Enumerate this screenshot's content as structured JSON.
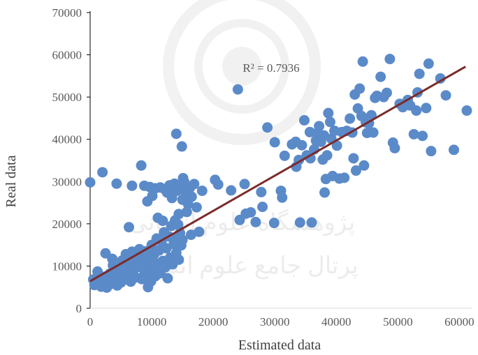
{
  "chart_data": {
    "type": "scatter",
    "title": "",
    "xlabel": "Estimated data",
    "ylabel": "Real data",
    "xlim": [
      0,
      62000
    ],
    "ylim": [
      0,
      70000
    ],
    "x_ticks": [
      0,
      10000,
      20000,
      30000,
      40000,
      50000,
      60000
    ],
    "y_ticks": [
      0,
      10000,
      20000,
      30000,
      40000,
      50000,
      60000,
      70000
    ],
    "x_tick_labels": [
      "0",
      "10000",
      "20000",
      "30000",
      "40000",
      "50000",
      "60000"
    ],
    "y_tick_labels": [
      "0",
      "10000",
      "20000",
      "30000",
      "40000",
      "50000",
      "60000",
      "70000"
    ],
    "grid": false,
    "legend": "none",
    "annotation": "R² = 0.7936",
    "colors": {
      "points": "#5b8ac9",
      "trendline": "#7b2b2b",
      "axis": "#000000"
    },
    "trendline": {
      "x": [
        0,
        61000
      ],
      "y": [
        6400,
        57200
      ]
    },
    "series": [
      {
        "values": [
          [
            0,
            29800
          ],
          [
            2000,
            32200
          ],
          [
            4300,
            29500
          ],
          [
            6800,
            29000
          ],
          [
            8300,
            33800
          ],
          [
            6300,
            19200
          ],
          [
            500,
            6800
          ],
          [
            700,
            5500
          ],
          [
            1000,
            6200
          ],
          [
            1300,
            6900
          ],
          [
            1500,
            5600
          ],
          [
            1800,
            5100
          ],
          [
            2100,
            6300
          ],
          [
            2400,
            7500
          ],
          [
            2700,
            4900
          ],
          [
            3000,
            6000
          ],
          [
            3200,
            8200
          ],
          [
            3500,
            5800
          ],
          [
            3700,
            10200
          ],
          [
            4000,
            6700
          ],
          [
            4200,
            7300
          ],
          [
            4400,
            5400
          ],
          [
            4600,
            9100
          ],
          [
            4800,
            7900
          ],
          [
            5000,
            6100
          ],
          [
            5200,
            11300
          ],
          [
            5400,
            8600
          ],
          [
            5600,
            6800
          ],
          [
            5800,
            12800
          ],
          [
            6000,
            7700
          ],
          [
            6200,
            9600
          ],
          [
            6400,
            10500
          ],
          [
            6600,
            6300
          ],
          [
            6800,
            13400
          ],
          [
            7000,
            8900
          ],
          [
            7200,
            11800
          ],
          [
            7400,
            7300
          ],
          [
            7600,
            12500
          ],
          [
            7800,
            9800
          ],
          [
            8000,
            14000
          ],
          [
            8200,
            10900
          ],
          [
            8400,
            6900
          ],
          [
            8600,
            12200
          ],
          [
            8800,
            8000
          ],
          [
            9000,
            13500
          ],
          [
            9200,
            10100
          ],
          [
            9400,
            5000
          ],
          [
            9600,
            11600
          ],
          [
            9800,
            8700
          ],
          [
            10000,
            15000
          ],
          [
            10200,
            9300
          ],
          [
            10400,
            12800
          ],
          [
            10600,
            7600
          ],
          [
            10800,
            16500
          ],
          [
            11000,
            10600
          ],
          [
            11200,
            13700
          ],
          [
            11400,
            8300
          ],
          [
            11600,
            15800
          ],
          [
            11800,
            11200
          ],
          [
            12000,
            18000
          ],
          [
            12200,
            9700
          ],
          [
            12400,
            14200
          ],
          [
            12600,
            7100
          ],
          [
            12800,
            17000
          ],
          [
            13000,
            12000
          ],
          [
            13200,
            19500
          ],
          [
            13400,
            10400
          ],
          [
            13600,
            15200
          ],
          [
            13800,
            20800
          ],
          [
            14000,
            13100
          ],
          [
            14200,
            16700
          ],
          [
            14400,
            11500
          ],
          [
            14600,
            17800
          ],
          [
            14800,
            14900
          ],
          [
            15000,
            16200
          ],
          [
            2500,
            13000
          ],
          [
            3600,
            11700
          ],
          [
            1200,
            8700
          ],
          [
            5700,
            9600
          ],
          [
            9900,
            6400
          ],
          [
            11300,
            9000
          ],
          [
            12900,
            10800
          ],
          [
            8800,
            29000
          ],
          [
            9300,
            25300
          ],
          [
            9700,
            28700
          ],
          [
            10100,
            26600
          ],
          [
            10600,
            28400
          ],
          [
            11000,
            21400
          ],
          [
            11400,
            28600
          ],
          [
            11800,
            20700
          ],
          [
            12500,
            27400
          ],
          [
            12900,
            29100
          ],
          [
            13300,
            26100
          ],
          [
            13700,
            29500
          ],
          [
            14100,
            27800
          ],
          [
            14400,
            22300
          ],
          [
            14700,
            28400
          ],
          [
            15000,
            25700
          ],
          [
            15300,
            29900
          ],
          [
            15600,
            27200
          ],
          [
            15900,
            24700
          ],
          [
            16200,
            28500
          ],
          [
            16500,
            26400
          ],
          [
            16900,
            29400
          ],
          [
            17300,
            23900
          ],
          [
            17700,
            18100
          ],
          [
            18200,
            27800
          ],
          [
            14000,
            41300
          ],
          [
            14900,
            38300
          ],
          [
            12100,
            28200
          ],
          [
            13500,
            28000
          ],
          [
            15100,
            30800
          ],
          [
            15700,
            22800
          ],
          [
            14300,
            19800
          ],
          [
            16400,
            17400
          ],
          [
            20300,
            30400
          ],
          [
            20800,
            29300
          ],
          [
            22900,
            27900
          ],
          [
            24300,
            20900
          ],
          [
            24000,
            51800
          ],
          [
            25100,
            29400
          ],
          [
            25300,
            22400
          ],
          [
            26100,
            22700
          ],
          [
            26900,
            20400
          ],
          [
            27800,
            27500
          ],
          [
            28000,
            24000
          ],
          [
            28800,
            42800
          ],
          [
            29900,
            20200
          ],
          [
            31200,
            26200
          ],
          [
            31600,
            36100
          ],
          [
            32800,
            38800
          ],
          [
            33400,
            39400
          ],
          [
            33900,
            35100
          ],
          [
            34100,
            20300
          ],
          [
            34400,
            38600
          ],
          [
            34800,
            44500
          ],
          [
            35200,
            36200
          ],
          [
            35700,
            41700
          ],
          [
            36000,
            20300
          ],
          [
            36400,
            37600
          ],
          [
            36700,
            39700
          ],
          [
            37000,
            41600
          ],
          [
            37200,
            43100
          ],
          [
            37500,
            39400
          ],
          [
            37800,
            35200
          ],
          [
            38000,
            40900
          ],
          [
            38100,
            27400
          ],
          [
            38300,
            30600
          ],
          [
            38500,
            36200
          ],
          [
            38700,
            46200
          ],
          [
            39000,
            44100
          ],
          [
            39200,
            40100
          ],
          [
            39400,
            31300
          ],
          [
            39700,
            42000
          ],
          [
            40100,
            38500
          ],
          [
            40500,
            30700
          ],
          [
            40900,
            41700
          ],
          [
            41300,
            30900
          ],
          [
            41700,
            42000
          ],
          [
            42200,
            44900
          ],
          [
            42600,
            41600
          ],
          [
            42800,
            35500
          ],
          [
            43000,
            50600
          ],
          [
            43200,
            32600
          ],
          [
            43500,
            47300
          ],
          [
            43800,
            52000
          ],
          [
            44100,
            45500
          ],
          [
            44300,
            58400
          ],
          [
            44500,
            33800
          ],
          [
            44800,
            44000
          ],
          [
            45000,
            41500
          ],
          [
            45300,
            43800
          ],
          [
            45700,
            45700
          ],
          [
            46000,
            41600
          ],
          [
            46300,
            49800
          ],
          [
            46600,
            50300
          ],
          [
            47200,
            54800
          ],
          [
            47700,
            50000
          ],
          [
            48200,
            51000
          ],
          [
            48700,
            59000
          ],
          [
            49200,
            39200
          ],
          [
            49500,
            37900
          ],
          [
            50300,
            48400
          ],
          [
            50800,
            47600
          ],
          [
            51600,
            49300
          ],
          [
            52000,
            48000
          ],
          [
            52600,
            41200
          ],
          [
            53000,
            46800
          ],
          [
            53200,
            51100
          ],
          [
            53500,
            55500
          ],
          [
            54000,
            40800
          ],
          [
            54600,
            47400
          ],
          [
            55000,
            57900
          ],
          [
            55400,
            37200
          ],
          [
            56900,
            54400
          ],
          [
            57800,
            50400
          ],
          [
            59100,
            37500
          ],
          [
            61200,
            46800
          ],
          [
            33500,
            33500
          ],
          [
            35800,
            35500
          ],
          [
            31000,
            27800
          ],
          [
            30000,
            39300
          ]
        ]
      }
    ]
  }
}
